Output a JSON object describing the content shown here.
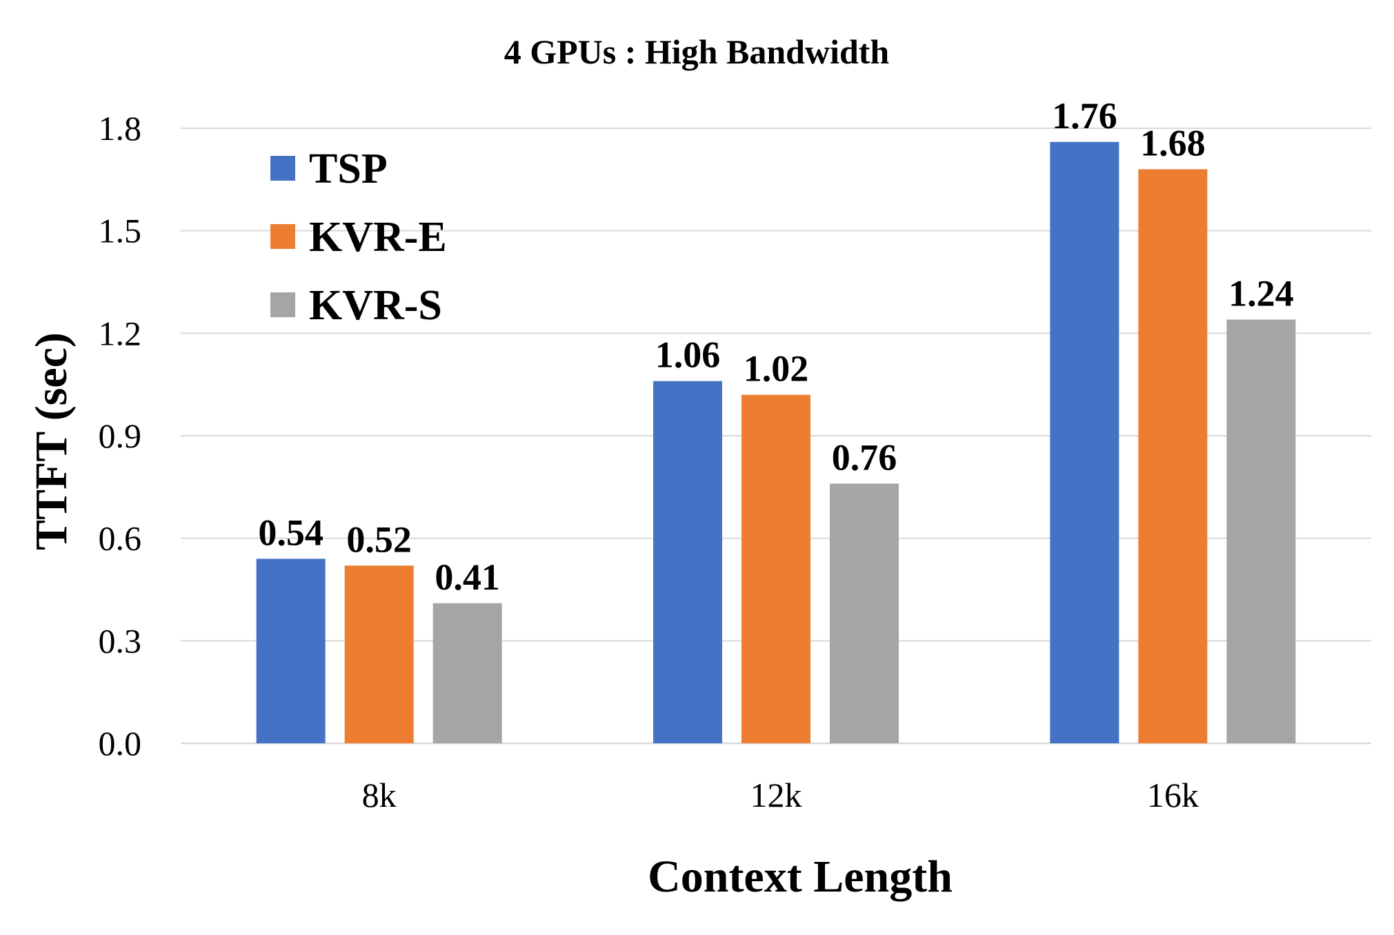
{
  "chart_data": {
    "type": "bar",
    "title": "4 GPUs : High Bandwidth",
    "xlabel": "Context Length",
    "ylabel": "TTFT (sec)",
    "categories": [
      "8k",
      "12k",
      "16k"
    ],
    "series": [
      {
        "name": "TSP",
        "color": "#4472c4",
        "values": [
          0.54,
          1.06,
          1.76
        ]
      },
      {
        "name": "KVR-E",
        "color": "#ed7d31",
        "values": [
          0.52,
          1.02,
          1.68
        ]
      },
      {
        "name": "KVR-S",
        "color": "#a5a5a5",
        "values": [
          0.41,
          0.76,
          1.24
        ]
      }
    ],
    "data_labels": [
      [
        "0.54",
        "1.06",
        "1.76"
      ],
      [
        "0.52",
        "1.02",
        "1.68"
      ],
      [
        "0.41",
        "0.76",
        "1.24"
      ]
    ],
    "ylim": [
      0,
      1.8
    ],
    "yticks": [
      0,
      0.3,
      0.6,
      0.9,
      1.2,
      1.5,
      1.8
    ],
    "ytick_labels": [
      "0.0",
      "0.3",
      "0.6",
      "0.9",
      "1.2",
      "1.5",
      "1.8"
    ],
    "grid": true,
    "legend": "top-left"
  }
}
